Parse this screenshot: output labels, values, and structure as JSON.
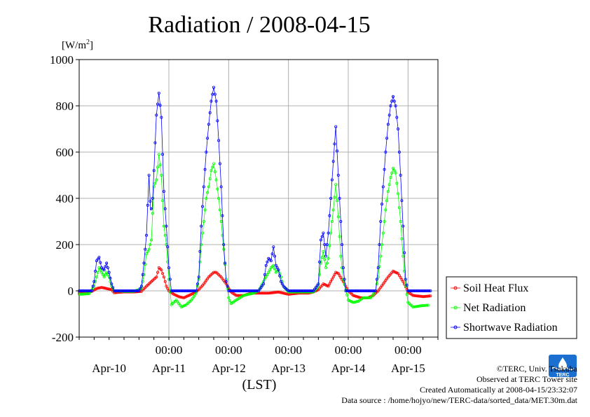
{
  "chart_data": {
    "type": "line",
    "title": "Radiation / 2008-04-15",
    "ylabel": "[W/m2]",
    "ylabel_main": "[W/m",
    "ylabel_sup": "2",
    "ylabel_close": "]",
    "xlabel": "(LST)",
    "ylim": [
      -200,
      1000
    ],
    "xlim": [
      "2008-04-09 12:00",
      "2008-04-15 12:00"
    ],
    "grid": true,
    "legend_position": "bottom-right",
    "y_ticks": [
      "1000",
      "800",
      "600",
      "400",
      "200",
      "0",
      "-200"
    ],
    "x_time_ticks": [
      "00:00",
      "00:00",
      "00:00",
      "00:00",
      "00:00"
    ],
    "x_date_labels": [
      "Apr-10",
      "Apr-11",
      "Apr-12",
      "Apr-13",
      "Apr-14",
      "Apr-15"
    ],
    "series": [
      {
        "name": "Soil Heat Flux",
        "color": "#ff0000",
        "points": [
          [
            "2008-04-09 12:00",
            -10
          ],
          [
            "2008-04-09 15:00",
            -8
          ],
          [
            "2008-04-09 17:00",
            -2
          ],
          [
            "2008-04-09 19:00",
            10
          ],
          [
            "2008-04-09 21:00",
            15
          ],
          [
            "2008-04-09 23:00",
            10
          ],
          [
            "2008-04-10 01:00",
            5
          ],
          [
            "2008-04-10 02:00",
            -8
          ],
          [
            "2008-04-10 06:00",
            -5
          ],
          [
            "2008-04-10 10:00",
            -5
          ],
          [
            "2008-04-10 13:00",
            -2
          ],
          [
            "2008-04-10 15:00",
            20
          ],
          [
            "2008-04-10 17:00",
            40
          ],
          [
            "2008-04-10 19:00",
            60
          ],
          [
            "2008-04-10 20:00",
            100
          ],
          [
            "2008-04-10 21:00",
            90
          ],
          [
            "2008-04-10 22:00",
            60
          ],
          [
            "2008-04-10 23:00",
            20
          ],
          [
            "2008-04-11 00:00",
            0
          ],
          [
            "2008-04-11 02:00",
            -15
          ],
          [
            "2008-04-11 04:00",
            -25
          ],
          [
            "2008-04-11 06:00",
            -30
          ],
          [
            "2008-04-11 08:00",
            -20
          ],
          [
            "2008-04-11 10:00",
            -10
          ],
          [
            "2008-04-11 12:00",
            5
          ],
          [
            "2008-04-11 14:00",
            30
          ],
          [
            "2008-04-11 16:00",
            60
          ],
          [
            "2008-04-11 18:00",
            80
          ],
          [
            "2008-04-11 19:00",
            80
          ],
          [
            "2008-04-11 21:00",
            60
          ],
          [
            "2008-04-11 23:00",
            30
          ],
          [
            "2008-04-12 01:00",
            -5
          ],
          [
            "2008-04-12 03:00",
            -20
          ],
          [
            "2008-04-12 06:00",
            -20
          ],
          [
            "2008-04-12 09:00",
            -10
          ],
          [
            "2008-04-12 12:00",
            -10
          ],
          [
            "2008-04-12 16:00",
            -10
          ],
          [
            "2008-04-12 20:00",
            -5
          ],
          [
            "2008-04-13 00:00",
            -15
          ],
          [
            "2008-04-13 04:00",
            -10
          ],
          [
            "2008-04-13 08:00",
            -10
          ],
          [
            "2008-04-13 10:00",
            -5
          ],
          [
            "2008-04-13 12:00",
            5
          ],
          [
            "2008-04-13 14:00",
            30
          ],
          [
            "2008-04-13 16:00",
            20
          ],
          [
            "2008-04-13 18:00",
            60
          ],
          [
            "2008-04-13 19:00",
            80
          ],
          [
            "2008-04-13 20:00",
            75
          ],
          [
            "2008-04-13 22:00",
            40
          ],
          [
            "2008-04-14 00:00",
            0
          ],
          [
            "2008-04-14 02:00",
            -20
          ],
          [
            "2008-04-14 05:00",
            -30
          ],
          [
            "2008-04-14 08:00",
            -30
          ],
          [
            "2008-04-14 10:00",
            -20
          ],
          [
            "2008-04-14 12:00",
            0
          ],
          [
            "2008-04-14 14:00",
            30
          ],
          [
            "2008-04-14 16:00",
            60
          ],
          [
            "2008-04-14 18:00",
            85
          ],
          [
            "2008-04-14 20:00",
            75
          ],
          [
            "2008-04-14 22:00",
            40
          ],
          [
            "2008-04-15 00:00",
            -5
          ],
          [
            "2008-04-15 02:00",
            -20
          ],
          [
            "2008-04-15 06:00",
            -25
          ],
          [
            "2008-04-15 09:00",
            -22
          ]
        ]
      },
      {
        "name": "Net Radiation",
        "color": "#00ff00",
        "points": [
          [
            "2008-04-09 12:00",
            -15
          ],
          [
            "2008-04-09 16:00",
            -12
          ],
          [
            "2008-04-09 18:00",
            20
          ],
          [
            "2008-04-09 19:00",
            60
          ],
          [
            "2008-04-09 20:00",
            100
          ],
          [
            "2008-04-09 21:00",
            80
          ],
          [
            "2008-04-09 22:00",
            60
          ],
          [
            "2008-04-09 23:00",
            80
          ],
          [
            "2008-04-10 00:00",
            60
          ],
          [
            "2008-04-10 01:00",
            20
          ],
          [
            "2008-04-10 02:00",
            0
          ],
          [
            "2008-04-10 06:00",
            -2
          ],
          [
            "2008-04-10 10:00",
            -2
          ],
          [
            "2008-04-10 13:00",
            10
          ],
          [
            "2008-04-10 14:00",
            70
          ],
          [
            "2008-04-10 15:00",
            160
          ],
          [
            "2008-04-10 16:00",
            180
          ],
          [
            "2008-04-10 17:00",
            220
          ],
          [
            "2008-04-10 18:00",
            450
          ],
          [
            "2008-04-10 19:00",
            480
          ],
          [
            "2008-04-10 20:00",
            590
          ],
          [
            "2008-04-10 21:00",
            500
          ],
          [
            "2008-04-10 22:00",
            280
          ],
          [
            "2008-04-10 23:00",
            200
          ],
          [
            "2008-04-11 00:00",
            50
          ],
          [
            "2008-04-11 01:00",
            -60
          ],
          [
            "2008-04-11 03:00",
            -40
          ],
          [
            "2008-04-11 05:00",
            -70
          ],
          [
            "2008-04-11 07:00",
            -60
          ],
          [
            "2008-04-11 09:00",
            -40
          ],
          [
            "2008-04-11 11:00",
            -10
          ],
          [
            "2008-04-11 12:00",
            50
          ],
          [
            "2008-04-11 13:00",
            200
          ],
          [
            "2008-04-11 14:00",
            300
          ],
          [
            "2008-04-11 15:00",
            400
          ],
          [
            "2008-04-11 16:00",
            450
          ],
          [
            "2008-04-11 17:00",
            520
          ],
          [
            "2008-04-11 18:00",
            550
          ],
          [
            "2008-04-11 19:00",
            480
          ],
          [
            "2008-04-11 20:00",
            400
          ],
          [
            "2008-04-11 21:00",
            300
          ],
          [
            "2008-04-11 22:00",
            180
          ],
          [
            "2008-04-11 23:00",
            50
          ],
          [
            "2008-04-12 00:00",
            -30
          ],
          [
            "2008-04-12 01:00",
            -55
          ],
          [
            "2008-04-12 03:00",
            -40
          ],
          [
            "2008-04-12 06:00",
            -20
          ],
          [
            "2008-04-12 10:00",
            -10
          ],
          [
            "2008-04-12 12:00",
            0
          ],
          [
            "2008-04-12 14:00",
            40
          ],
          [
            "2008-04-12 16:00",
            80
          ],
          [
            "2008-04-12 17:00",
            100
          ],
          [
            "2008-04-12 18:00",
            110
          ],
          [
            "2008-04-12 19:00",
            80
          ],
          [
            "2008-04-12 20:00",
            90
          ],
          [
            "2008-04-12 21:00",
            60
          ],
          [
            "2008-04-12 22:00",
            20
          ],
          [
            "2008-04-13 00:00",
            -5
          ],
          [
            "2008-04-13 04:00",
            -5
          ],
          [
            "2008-04-13 10:00",
            -5
          ],
          [
            "2008-04-13 12:00",
            20
          ],
          [
            "2008-04-13 13:00",
            120
          ],
          [
            "2008-04-13 14:00",
            170
          ],
          [
            "2008-04-13 15:00",
            100
          ],
          [
            "2008-04-13 16:00",
            140
          ],
          [
            "2008-04-13 17:00",
            250
          ],
          [
            "2008-04-13 18:00",
            350
          ],
          [
            "2008-04-13 19:00",
            460
          ],
          [
            "2008-04-13 20:00",
            320
          ],
          [
            "2008-04-13 21:00",
            150
          ],
          [
            "2008-04-13 22:00",
            50
          ],
          [
            "2008-04-14 00:00",
            -40
          ],
          [
            "2008-04-14 02:00",
            -50
          ],
          [
            "2008-04-14 04:00",
            -45
          ],
          [
            "2008-04-14 06:00",
            -30
          ],
          [
            "2008-04-14 09:00",
            -30
          ],
          [
            "2008-04-14 11:00",
            0
          ],
          [
            "2008-04-14 12:00",
            60
          ],
          [
            "2008-04-14 13:00",
            150
          ],
          [
            "2008-04-14 14:00",
            250
          ],
          [
            "2008-04-14 15:00",
            350
          ],
          [
            "2008-04-14 16:00",
            430
          ],
          [
            "2008-04-14 17:00",
            490
          ],
          [
            "2008-04-14 18:00",
            530
          ],
          [
            "2008-04-14 19:00",
            510
          ],
          [
            "2008-04-14 20:00",
            420
          ],
          [
            "2008-04-14 21:00",
            300
          ],
          [
            "2008-04-14 22:00",
            150
          ],
          [
            "2008-04-14 23:00",
            20
          ],
          [
            "2008-04-15 00:00",
            -50
          ],
          [
            "2008-04-15 02:00",
            -70
          ],
          [
            "2008-04-15 05:00",
            -65
          ],
          [
            "2008-04-15 08:00",
            -62
          ]
        ]
      },
      {
        "name": "Shortwave Radiation",
        "color": "#0000ff",
        "points": [
          [
            "2008-04-09 12:00",
            0
          ],
          [
            "2008-04-09 17:00",
            0
          ],
          [
            "2008-04-09 18:00",
            40
          ],
          [
            "2008-04-09 19:00",
            130
          ],
          [
            "2008-04-09 20:00",
            145
          ],
          [
            "2008-04-09 21:00",
            100
          ],
          [
            "2008-04-09 22:00",
            90
          ],
          [
            "2008-04-09 23:00",
            120
          ],
          [
            "2008-04-10 00:00",
            80
          ],
          [
            "2008-04-10 01:00",
            30
          ],
          [
            "2008-04-10 02:00",
            0
          ],
          [
            "2008-04-10 10:00",
            0
          ],
          [
            "2008-04-10 12:00",
            0
          ],
          [
            "2008-04-10 13:00",
            20
          ],
          [
            "2008-04-10 14:00",
            120
          ],
          [
            "2008-04-10 15:00",
            240
          ],
          [
            "2008-04-10 16:00",
            500
          ],
          [
            "2008-04-10 16:40",
            350
          ],
          [
            "2008-04-10 17:20",
            360
          ],
          [
            "2008-04-10 18:00",
            520
          ],
          [
            "2008-04-10 19:00",
            760
          ],
          [
            "2008-04-10 20:00",
            855
          ],
          [
            "2008-04-10 21:00",
            750
          ],
          [
            "2008-04-10 22:00",
            430
          ],
          [
            "2008-04-10 23:00",
            280
          ],
          [
            "2008-04-11 00:00",
            100
          ],
          [
            "2008-04-11 01:00",
            0
          ],
          [
            "2008-04-11 10:00",
            0
          ],
          [
            "2008-04-11 11:00",
            0
          ],
          [
            "2008-04-11 12:00",
            60
          ],
          [
            "2008-04-11 13:00",
            280
          ],
          [
            "2008-04-11 14:00",
            450
          ],
          [
            "2008-04-11 15:00",
            600
          ],
          [
            "2008-04-11 16:00",
            720
          ],
          [
            "2008-04-11 17:00",
            820
          ],
          [
            "2008-04-11 18:00",
            880
          ],
          [
            "2008-04-11 19:00",
            820
          ],
          [
            "2008-04-11 20:00",
            650
          ],
          [
            "2008-04-11 21:00",
            450
          ],
          [
            "2008-04-11 22:00",
            200
          ],
          [
            "2008-04-11 23:00",
            40
          ],
          [
            "2008-04-12 00:00",
            0
          ],
          [
            "2008-04-12 10:00",
            0
          ],
          [
            "2008-04-12 12:00",
            0
          ],
          [
            "2008-04-12 14:00",
            30
          ],
          [
            "2008-04-12 15:00",
            110
          ],
          [
            "2008-04-12 16:00",
            140
          ],
          [
            "2008-04-12 17:00",
            130
          ],
          [
            "2008-04-12 18:00",
            190
          ],
          [
            "2008-04-12 19:00",
            110
          ],
          [
            "2008-04-12 20:00",
            90
          ],
          [
            "2008-04-12 21:00",
            40
          ],
          [
            "2008-04-12 22:00",
            20
          ],
          [
            "2008-04-13 00:00",
            0
          ],
          [
            "2008-04-13 10:00",
            0
          ],
          [
            "2008-04-13 12:00",
            30
          ],
          [
            "2008-04-13 13:00",
            220
          ],
          [
            "2008-04-13 14:00",
            250
          ],
          [
            "2008-04-13 15:00",
            150
          ],
          [
            "2008-04-13 16:00",
            250
          ],
          [
            "2008-04-13 17:00",
            400
          ],
          [
            "2008-04-13 18:00",
            560
          ],
          [
            "2008-04-13 19:00",
            710
          ],
          [
            "2008-04-13 20:00",
            500
          ],
          [
            "2008-04-13 21:00",
            300
          ],
          [
            "2008-04-13 22:00",
            100
          ],
          [
            "2008-04-13 23:00",
            0
          ],
          [
            "2008-04-14 10:00",
            0
          ],
          [
            "2008-04-14 11:00",
            0
          ],
          [
            "2008-04-14 12:00",
            100
          ],
          [
            "2008-04-14 13:00",
            300
          ],
          [
            "2008-04-14 14:00",
            450
          ],
          [
            "2008-04-14 15:00",
            600
          ],
          [
            "2008-04-14 16:00",
            720
          ],
          [
            "2008-04-14 17:00",
            800
          ],
          [
            "2008-04-14 18:00",
            840
          ],
          [
            "2008-04-14 19:00",
            800
          ],
          [
            "2008-04-14 20:00",
            700
          ],
          [
            "2008-04-14 21:00",
            500
          ],
          [
            "2008-04-14 22:00",
            280
          ],
          [
            "2008-04-14 23:00",
            50
          ],
          [
            "2008-04-15 00:00",
            0
          ],
          [
            "2008-04-15 09:00",
            0
          ]
        ]
      }
    ]
  },
  "footer": {
    "copyright": "©TERC, Univ. Tsukuba",
    "observed": "Observed at TERC Tower site",
    "created": "Created Automatically at 2008-04-15/23:32:07",
    "source": "Data source : /home/hojyo/new/TERC-data/sorted_data/MET.30m.dat"
  },
  "logo": {
    "text": "TERC",
    "color": "#1a6fd1"
  }
}
